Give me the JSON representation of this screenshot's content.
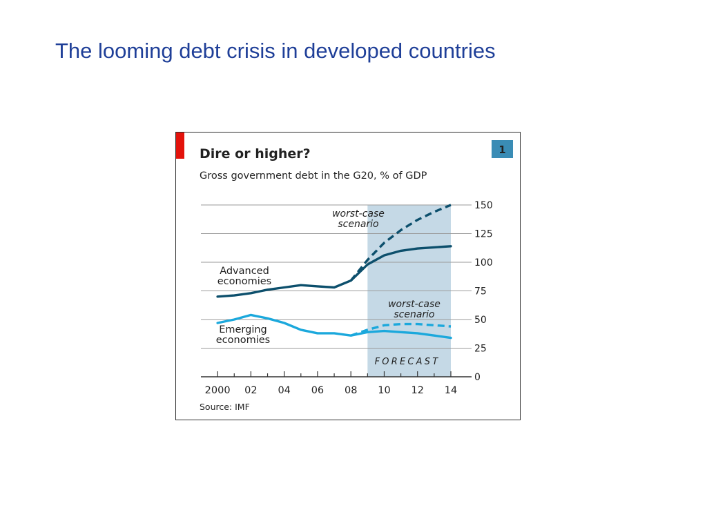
{
  "slide": {
    "title": "The looming debt crisis in developed countries"
  },
  "chart_data": {
    "type": "line",
    "title": "Dire or higher?",
    "subtitle": "Gross government debt in the G20, % of GDP",
    "badge": "1",
    "source": "Source: IMF",
    "forecast_label": "FORECAST",
    "forecast_range": [
      2009,
      2014
    ],
    "x_ticks": [
      "2000",
      "02",
      "04",
      "06",
      "08",
      "10",
      "12",
      "14"
    ],
    "x_tick_values": [
      2000,
      2002,
      2004,
      2006,
      2008,
      2010,
      2012,
      2014
    ],
    "xlim": [
      1999,
      2014
    ],
    "ylim": [
      0,
      150
    ],
    "y_ticks": [
      0,
      25,
      50,
      75,
      100,
      125,
      150
    ],
    "grid": true,
    "colors": {
      "accent_red": "#e3120b",
      "forecast_shade": "#c5d9e6",
      "advanced": "#0c4f6c",
      "emerging": "#1ba8dc",
      "badge": "#3a8cb5",
      "forecast_text": "#2e7aa3",
      "grid": "#9a9a9a"
    },
    "series": [
      {
        "key": "advanced",
        "style": "solid",
        "x": [
          2000,
          2001,
          2002,
          2003,
          2004,
          2005,
          2006,
          2007,
          2008,
          2009,
          2010,
          2011,
          2012,
          2013,
          2014
        ],
        "values": [
          70,
          71,
          73,
          76,
          78,
          80,
          79,
          78,
          84,
          98,
          106,
          110,
          112,
          113,
          114
        ]
      },
      {
        "key": "advanced_worst",
        "style": "dashed",
        "x": [
          2008,
          2009,
          2010,
          2011,
          2012,
          2013,
          2014
        ],
        "values": [
          84,
          102,
          117,
          128,
          137,
          144,
          150
        ]
      },
      {
        "key": "emerging",
        "style": "solid",
        "x": [
          2000,
          2001,
          2002,
          2003,
          2004,
          2005,
          2006,
          2007,
          2008,
          2009,
          2010,
          2011,
          2012,
          2013,
          2014
        ],
        "values": [
          47,
          50,
          54,
          51,
          47,
          41,
          38,
          38,
          36,
          39,
          40,
          39,
          38,
          36,
          34
        ]
      },
      {
        "key": "emerging_worst",
        "style": "dashed",
        "x": [
          2008,
          2009,
          2010,
          2011,
          2012,
          2013,
          2014
        ],
        "values": [
          36,
          41,
          45,
          46,
          46,
          45,
          44
        ]
      }
    ],
    "annotations": {
      "advanced_label": [
        "Advanced",
        "economies"
      ],
      "emerging_label": [
        "Emerging",
        "economies"
      ],
      "worst_case_top": [
        "worst-case",
        "scenario"
      ],
      "worst_case_bottom": [
        "worst-case",
        "scenario"
      ]
    }
  }
}
